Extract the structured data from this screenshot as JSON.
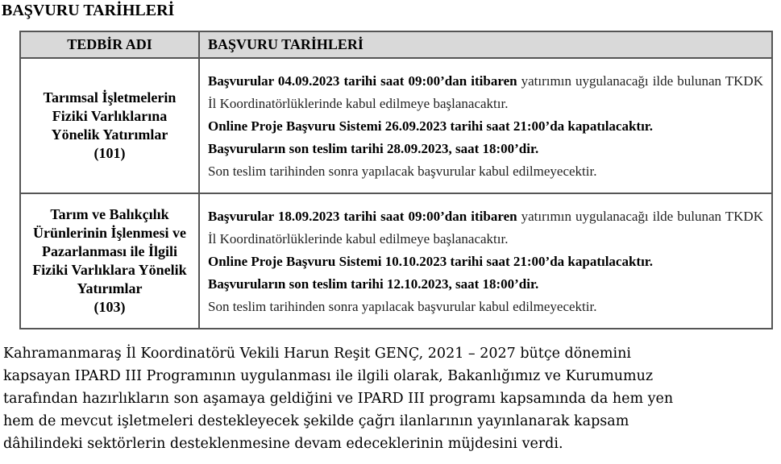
{
  "title": "BAŞVURU TARİHLERİ",
  "table": {
    "headers": [
      "TEDBİR ADI",
      "BAŞVURU TARİHLERİ"
    ],
    "rows": [
      {
        "name": "Tarımsal İşletmelerin Fiziki Varlıklarına Yönelik Yatırımlar",
        "code": "(101)",
        "paragraphs": [
          {
            "bold": "Başvurular 04.09.2023 tarihi saat 09:00’dan itibaren",
            "normal": "yatırımın uygulanacağı ilde bulunan TKDK İl Koordinatörlüklerinde kabul edilmeye başlanacaktır."
          },
          {
            "bold": "Online Proje Başvuru Sistemi 26.09.2023 tarihi saat 21:00’da kapatılacaktır."
          },
          {
            "bold": "Başvuruların son teslim tarihi 28.09.2023, saat 18:00’dir."
          },
          {
            "normal": "Son teslim tarihinden sonra yapılacak başvurular kabul edilmeyecektir."
          }
        ]
      },
      {
        "name": "Tarım ve Balıkçılık Ürünlerinin İşlenmesi ve Pazarlanması ile İlgili Fiziki Varlıklara Yönelik Yatırımlar",
        "code": "(103)",
        "paragraphs": [
          {
            "bold": "Başvurular 18.09.2023 tarihi saat 09:00’dan itibaren",
            "normal": "yatırımın uygulanacağı ilde bulunan TKDK İl Koordinatörlüklerinde kabul edilmeye başlanacaktır."
          },
          {
            "bold": "Online Proje Başvuru Sistemi 10.10.2023 tarihi saat 21:00’da kapatılacaktır."
          },
          {
            "bold": "Başvuruların son teslim tarihi 12.10.2023, saat 18:00’dir."
          },
          {
            "normal": "Son teslim tarihinden sonra yapılacak başvurular kabul edilmeyecektir."
          }
        ]
      }
    ]
  },
  "article": {
    "lines": [
      "Kahramanmaraş İl Koordinatörü Vekili Harun Reşit GENÇ, 2021 – 2027 bütçe dönemini",
      "kapsayan IPARD III Programının uygulanması ile ilgili olarak, Bakanlığımız ve Kurumumuz",
      "tarafından hazırlıkların son aşamaya geldiğini ve IPARD III programı kapsamında da hem yen",
      "hem de mevcut işletmeleri destekleyecek şekilde çağrı ilanlarının yayınlanarak kapsam",
      "dâhilindeki sektörlerin desteklenmesine devam edeceklerinin müjdesini verdi."
    ]
  }
}
